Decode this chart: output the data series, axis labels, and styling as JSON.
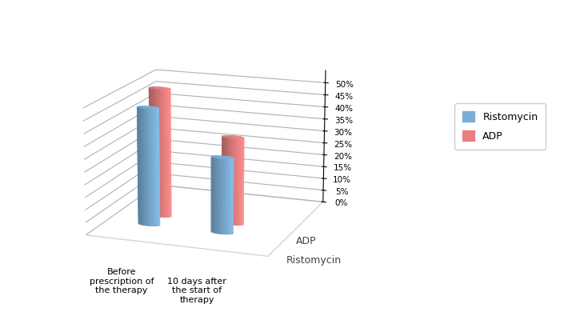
{
  "categories": [
    "Before\nprescription of\nthe therapy",
    "10 days after\nthe start of\ntherapy"
  ],
  "series": [
    {
      "name": "Ristomycin",
      "values": [
        47,
        30
      ],
      "color_top": "#7aaed6",
      "color_body": "#7aaed6",
      "color_dark": "#5a8eb6"
    },
    {
      "name": "ADP",
      "values": [
        52,
        35
      ],
      "color_top": "#e88080",
      "color_body": "#e88080",
      "color_dark": "#c86060"
    }
  ],
  "ylim": [
    0,
    55
  ],
  "yticks": [
    0,
    5,
    10,
    15,
    20,
    25,
    30,
    35,
    40,
    45,
    50
  ],
  "yticklabels": [
    "0%",
    "5%",
    "10%",
    "15%",
    "20%",
    "25%",
    "30%",
    "35%",
    "40%",
    "45%",
    "50%"
  ],
  "legend_labels": [
    "Ristomycin",
    "ADP"
  ],
  "legend_colors": [
    "#7aaed6",
    "#e88080"
  ],
  "axis_label_adp": "ADP",
  "axis_label_ristomycin": "Ristomycin",
  "bg_color": "#FFFFFF",
  "grid_color": "#AAAAAA",
  "elev": 15,
  "azim": -70
}
